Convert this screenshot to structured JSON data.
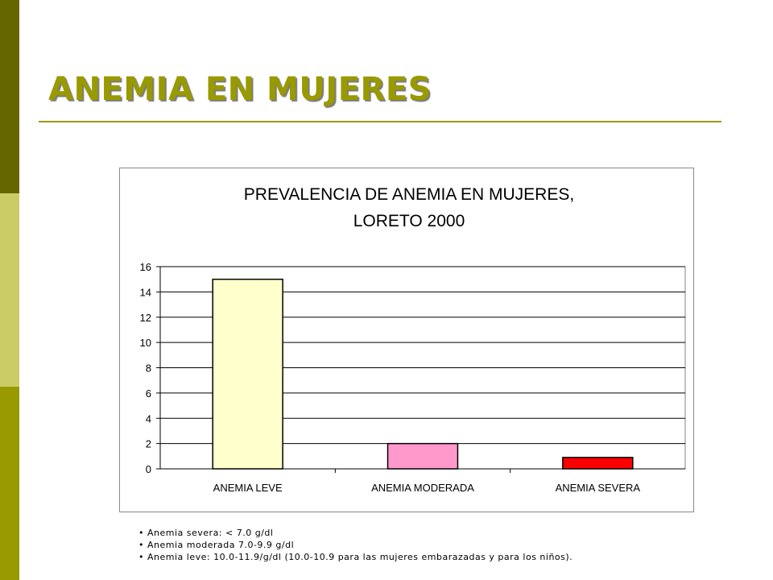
{
  "slide": {
    "title": "ANEMIA EN MUJERES",
    "accent_color": "#999900",
    "sidebar_colors": [
      "#666600",
      "#CCCC66",
      "#999900"
    ]
  },
  "chart_data": {
    "type": "bar",
    "title_lines": [
      "PREVALENCIA DE ANEMIA EN MUJERES,",
      "LORETO 2000"
    ],
    "categories": [
      "ANEMIA LEVE",
      "ANEMIA MODERADA",
      "ANEMIA SEVERA"
    ],
    "values": [
      15,
      2,
      0.9
    ],
    "colors": [
      "#FFFFCC",
      "#FF99CC",
      "#FF0000"
    ],
    "xlabel": "",
    "ylabel": "",
    "ylim": [
      0,
      16
    ],
    "yticks": [
      "0",
      "2",
      "4",
      "6",
      "8",
      "10",
      "12",
      "14",
      "16"
    ],
    "grid": true,
    "legend": "none"
  },
  "notes": [
    "Anemia severa: < 7.0 g/dl",
    "Anemia moderada 7.0-9.9 g/dl",
    "Anemia leve: 10.0-11.9/g/dl  (10.0-10.9 para las mujeres embarazadas y para los niños)."
  ]
}
